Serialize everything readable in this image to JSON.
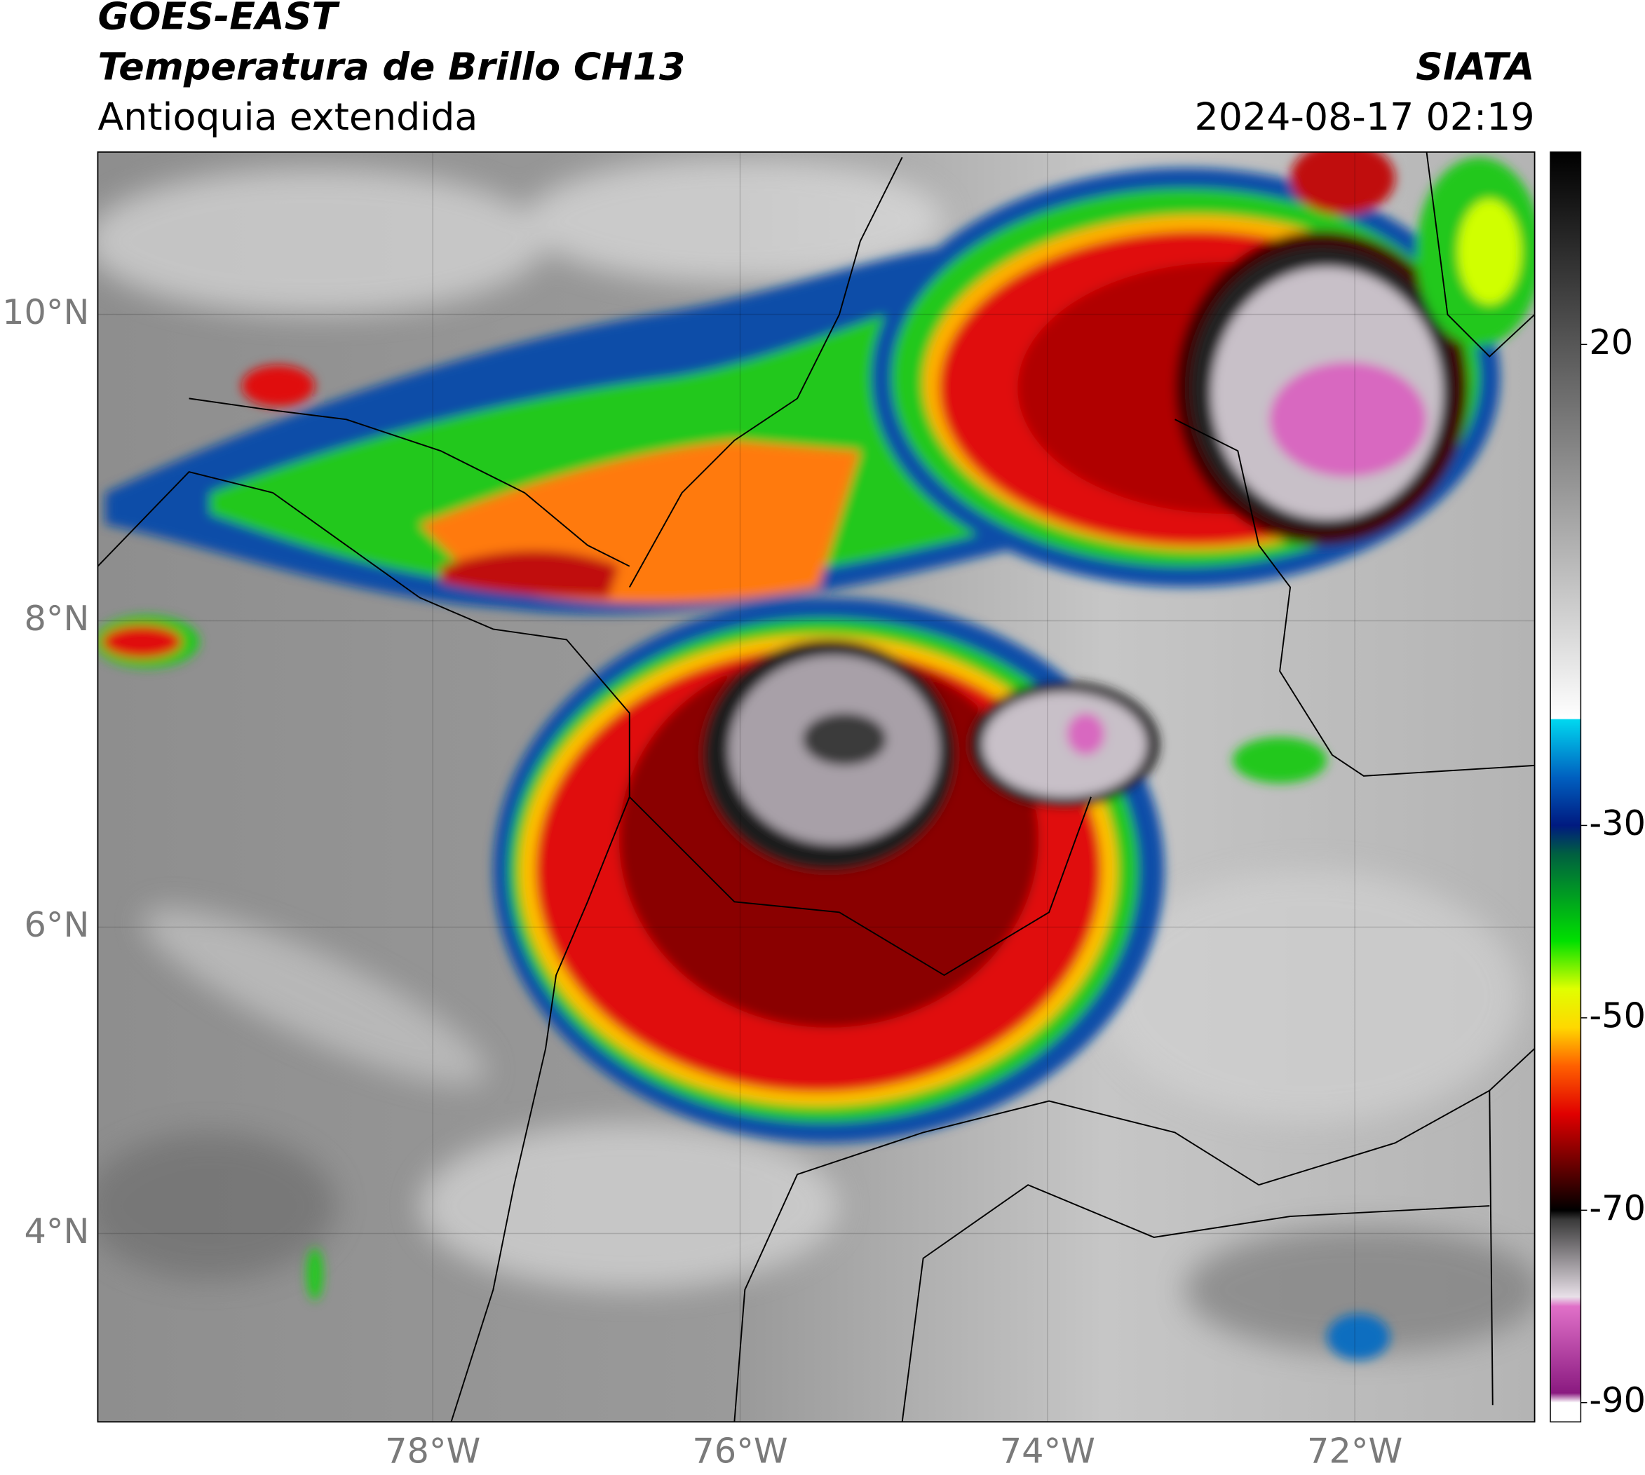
{
  "header": {
    "satellite": "GOES-EAST",
    "product": "Temperatura de Brillo CH13",
    "region": "Antioquia extendida",
    "source": "SIATA",
    "datetime": "2024-08-17 02:19"
  },
  "map": {
    "lon_range": [
      -80.18,
      -70.83
    ],
    "lat_range": [
      2.77,
      11.06
    ],
    "lat_ticks": [
      {
        "value": 10,
        "label": "10°N"
      },
      {
        "value": 8,
        "label": "8°N"
      },
      {
        "value": 6,
        "label": "6°N"
      },
      {
        "value": 4,
        "label": "4°N"
      }
    ],
    "lon_ticks": [
      {
        "value": -78,
        "label": "78°W"
      },
      {
        "value": -76,
        "label": "76°W"
      },
      {
        "value": -74,
        "label": "74°W"
      },
      {
        "value": -72,
        "label": "72°W"
      }
    ]
  },
  "colorbar": {
    "range": [
      -92,
      40
    ],
    "ticks": [
      20,
      -30,
      -50,
      -70,
      -90
    ],
    "stops": [
      {
        "value": -92,
        "color": "#ffffff"
      },
      {
        "value": -90,
        "color": "#ffffff"
      },
      {
        "value": -89,
        "color": "#8a1a80"
      },
      {
        "value": -80,
        "color": "#e070c8"
      },
      {
        "value": -79,
        "color": "#e8e0e8"
      },
      {
        "value": -71,
        "color": "#3a3a3a"
      },
      {
        "value": -70,
        "color": "#000000"
      },
      {
        "value": -66,
        "color": "#5a0000"
      },
      {
        "value": -60,
        "color": "#e00000"
      },
      {
        "value": -55,
        "color": "#ff6000"
      },
      {
        "value": -51,
        "color": "#ffd800"
      },
      {
        "value": -47,
        "color": "#e0ff00"
      },
      {
        "value": -42,
        "color": "#00e000"
      },
      {
        "value": -33,
        "color": "#006040"
      },
      {
        "value": -30,
        "color": "#001a80"
      },
      {
        "value": -25,
        "color": "#0060c0"
      },
      {
        "value": -19,
        "color": "#00d8f0"
      },
      {
        "value": -18.9,
        "color": "#ffffff"
      },
      {
        "value": 40,
        "color": "#000000"
      }
    ]
  }
}
